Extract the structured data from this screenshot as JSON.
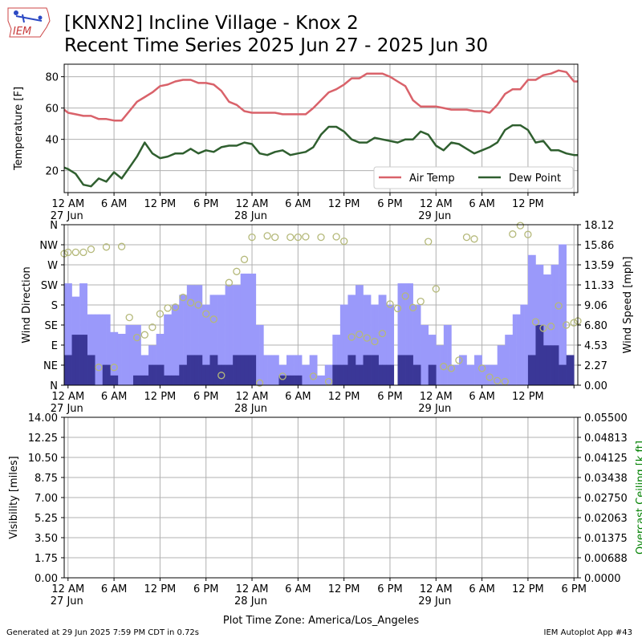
{
  "title_line1": "[KNXN2] Incline Village - Knox 2",
  "title_line2": "Recent Time Series 2025 Jun 27 - 2025 Jun 30",
  "logo_text": "IEM",
  "footer_left": "Generated at 29 Jun 2025 7:59 PM CDT in 0.72s",
  "footer_right": "IEM Autoplot App #43",
  "colors": {
    "air_temp": "#d9626a",
    "dew_point": "#2f5f2f",
    "gust_bar": "#9a99fa",
    "speed_bar": "#3a3797",
    "direction_marker": "#b5b97a",
    "ceiling_axis": "#008000",
    "grid": "#b0b0b0"
  },
  "chart_data": [
    {
      "type": "line",
      "ylabel": "Temperature [F]",
      "ylim": [
        6,
        88
      ],
      "yticks": [
        20,
        40,
        60,
        80
      ],
      "xlim": [
        -0.5,
        66.5
      ],
      "xticks": [
        0,
        6,
        12,
        18,
        24,
        30,
        36,
        42,
        48,
        54,
        60,
        66
      ],
      "xtick_labels": [
        "12 AM",
        "6 AM",
        "12 PM",
        "6 PM",
        "12 AM",
        "6 AM",
        "12 PM",
        "6 PM",
        "12 AM",
        "6 AM",
        "12 PM",
        ""
      ],
      "xtick_dates": {
        "0": "27 Jun",
        "24": "28 Jun",
        "48": "29 Jun"
      },
      "x_unit": "hours since 27 Jun 2025 12 AM",
      "legend": {
        "placement": "lower-right",
        "entries": [
          "Air Temp",
          "Dew Point"
        ]
      },
      "grid": true,
      "series": [
        {
          "name": "Air Temp",
          "x": [
            -0.5,
            0,
            1,
            2,
            3,
            4,
            5,
            6,
            7,
            8,
            9,
            10,
            11,
            12,
            13,
            14,
            15,
            16,
            17,
            18,
            19,
            20,
            21,
            22,
            23,
            24,
            25,
            26,
            27,
            28,
            29,
            30,
            31,
            32,
            33,
            34,
            35,
            36,
            37,
            38,
            39,
            40,
            41,
            42,
            43,
            44,
            45,
            46,
            47,
            48,
            49,
            50,
            51,
            52,
            53,
            54,
            55,
            56,
            57,
            58,
            59,
            60,
            61,
            62,
            63,
            64,
            65,
            66,
            66.5
          ],
          "values": [
            59,
            57,
            56,
            55,
            55,
            53,
            53,
            52,
            52,
            58,
            64,
            67,
            70,
            74,
            75,
            77,
            78,
            78,
            76,
            76,
            75,
            71,
            64,
            62,
            58,
            57,
            57,
            57,
            57,
            56,
            56,
            56,
            56,
            60,
            65,
            70,
            72,
            75,
            79,
            79,
            82,
            82,
            82,
            80,
            77,
            74,
            65,
            61,
            61,
            61,
            60,
            59,
            59,
            59,
            58,
            58,
            57,
            62,
            69,
            72,
            72,
            78,
            78,
            81,
            82,
            84,
            83,
            77,
            77
          ]
        },
        {
          "name": "Dew Point",
          "x": [
            -0.5,
            0,
            1,
            2,
            3,
            4,
            5,
            6,
            7,
            8,
            9,
            10,
            11,
            12,
            13,
            14,
            15,
            16,
            17,
            18,
            19,
            20,
            21,
            22,
            23,
            24,
            25,
            26,
            27,
            28,
            29,
            30,
            31,
            32,
            33,
            34,
            35,
            36,
            37,
            38,
            39,
            40,
            41,
            42,
            43,
            44,
            45,
            46,
            47,
            48,
            49,
            50,
            51,
            52,
            53,
            54,
            55,
            56,
            57,
            58,
            59,
            60,
            61,
            62,
            63,
            64,
            65,
            66,
            66.5
          ],
          "values": [
            22,
            21,
            18,
            11,
            10,
            15,
            13,
            19,
            15,
            22,
            29,
            38,
            31,
            28,
            29,
            31,
            31,
            34,
            31,
            33,
            32,
            35,
            36,
            36,
            38,
            37,
            31,
            30,
            32,
            33,
            30,
            31,
            32,
            35,
            43,
            48,
            48,
            45,
            40,
            38,
            38,
            41,
            40,
            39,
            38,
            40,
            40,
            45,
            43,
            36,
            33,
            38,
            37,
            34,
            31,
            33,
            35,
            38,
            46,
            49,
            49,
            46,
            38,
            39,
            33,
            33,
            31,
            30,
            30
          ]
        }
      ]
    },
    {
      "type": "bar",
      "ylabel": "Wind Direction",
      "y2label": "Wind Speed [mph]",
      "direction_labels": [
        "N",
        "NE",
        "E",
        "SE",
        "S",
        "SW",
        "W",
        "NW",
        "N"
      ],
      "ylim_direction": [
        0,
        360
      ],
      "ylim_speed": [
        0,
        18.12
      ],
      "speed_tick_labels": [
        "0.00",
        "2.27",
        "4.53",
        "6.80",
        "9.06",
        "11.33",
        "13.59",
        "15.86",
        "18.12"
      ],
      "xlim": [
        -0.5,
        66.5
      ],
      "xticks": [
        0,
        6,
        12,
        18,
        24,
        30,
        36,
        42,
        48,
        54,
        60,
        66
      ],
      "xtick_labels": [
        "12 AM",
        "6 AM",
        "12 PM",
        "6 PM",
        "12 AM",
        "6 AM",
        "12 PM",
        "6 PM",
        "12 AM",
        "6 AM",
        "12 PM",
        ""
      ],
      "xtick_dates": {
        "0": "27 Jun",
        "24": "28 Jun",
        "48": "29 Jun"
      },
      "x_unit": "hours since 27 Jun 2025 12 AM",
      "grid": true,
      "bars": {
        "start": -0.5,
        "step": 0.5,
        "gust_mph": [
          11.5,
          11.5,
          10,
          10,
          11.5,
          11.5,
          8,
          8,
          8,
          8,
          8,
          8,
          6,
          6,
          5.8,
          5.8,
          6.8,
          6.8,
          6.8,
          6.8,
          3.4,
          3.4,
          4.5,
          4.5,
          5.8,
          5.8,
          8,
          8,
          9.1,
          9.1,
          10.2,
          10.2,
          11.3,
          11.3,
          11.3,
          11.3,
          9.1,
          9.1,
          10.2,
          10.2,
          10.2,
          10.2,
          11.3,
          11.3,
          11.3,
          11.3,
          12.6,
          12.6,
          12.6,
          12.6,
          6.8,
          6.8,
          3.4,
          3.4,
          3.4,
          3.4,
          2.3,
          2.3,
          3.4,
          3.4,
          3.4,
          3.4,
          2.3,
          2.3,
          3.4,
          3.4,
          1.1,
          1.1,
          2.3,
          2.3,
          5.7,
          5.7,
          9.1,
          9.1,
          10.2,
          10.2,
          11.3,
          11.3,
          10.2,
          10.2,
          9.1,
          9.1,
          10.2,
          10.2,
          9.1,
          9.1,
          0,
          11.5,
          11.5,
          11.5,
          11.5,
          9.1,
          9.1,
          6.8,
          6.8,
          5.7,
          5.7,
          4.5,
          4.5,
          6.8,
          6.8,
          2.3,
          2.3,
          3.4,
          3.4,
          2.3,
          2.3,
          3.4,
          3.4,
          2.3,
          2.3,
          2.3,
          2.3,
          4.5,
          4.5,
          5.7,
          5.7,
          8,
          8,
          9.1,
          9.1,
          14.7,
          14.7,
          13.6,
          13.6,
          12.5,
          12.5,
          13.6,
          13.6,
          15.9,
          15.9
        ],
        "sustained_mph": [
          3.4,
          3.4,
          5.7,
          5.7,
          5.7,
          5.7,
          3.4,
          3.4,
          0,
          0,
          2.3,
          2.3,
          1.1,
          1.1,
          0,
          0,
          0,
          0,
          1.1,
          1.1,
          1.1,
          1.1,
          2.3,
          2.3,
          2.3,
          2.3,
          1.1,
          1.1,
          1.1,
          1.1,
          2.3,
          2.3,
          3.4,
          3.4,
          3.4,
          3.4,
          2.3,
          2.3,
          3.4,
          3.4,
          2.3,
          2.3,
          2.3,
          2.3,
          3.4,
          3.4,
          3.4,
          3.4,
          3.4,
          3.4,
          0,
          0,
          0,
          0,
          0,
          0,
          1.1,
          1.1,
          1.1,
          1.1,
          1.1,
          1.1,
          0,
          0,
          0,
          0,
          0,
          0,
          0,
          0,
          2.3,
          2.3,
          2.3,
          2.3,
          3.4,
          3.4,
          2.3,
          2.3,
          3.4,
          3.4,
          3.4,
          3.4,
          2.3,
          2.3,
          2.3,
          2.3,
          0,
          3.4,
          3.4,
          3.4,
          3.4,
          2.3,
          2.3,
          0,
          0,
          2.3,
          2.3,
          0,
          0,
          0,
          0,
          0,
          0,
          0,
          0,
          0,
          0,
          0,
          0,
          0,
          0,
          0,
          0,
          0,
          0,
          0,
          0,
          0,
          0,
          0,
          0,
          3.4,
          3.4,
          6.8,
          6.8,
          4.5,
          4.5,
          4.5,
          4.5,
          2.3,
          2.3,
          3.4,
          3.4
        ]
      },
      "direction_points": {
        "x": [
          -0.5,
          0,
          1,
          2,
          3,
          4,
          5,
          6,
          7,
          8,
          9,
          10,
          11,
          12,
          13,
          14,
          15,
          16,
          17,
          18,
          19,
          20,
          21,
          22,
          23,
          24,
          25,
          26,
          27,
          28,
          29,
          30,
          31,
          32,
          33,
          34,
          35,
          36,
          37,
          38,
          39,
          40,
          41,
          42,
          43,
          44,
          45,
          46,
          47,
          48,
          49,
          50,
          51,
          52,
          53,
          54,
          55,
          56,
          57,
          58,
          59,
          60,
          61,
          62,
          63,
          64,
          65,
          66,
          66.5
        ],
        "deg": [
          295,
          298,
          298,
          298,
          305,
          40,
          310,
          40,
          311,
          152,
          107,
          113,
          130,
          160,
          173,
          175,
          197,
          185,
          180,
          160,
          148,
          22,
          230,
          255,
          282,
          332,
          5,
          335,
          332,
          20,
          332,
          332,
          333,
          20,
          332,
          8,
          333,
          323,
          108,
          114,
          106,
          98,
          116,
          182,
          172,
          200,
          174,
          188,
          322,
          216,
          42,
          38,
          56,
          332,
          328,
          38,
          18,
          10,
          8,
          339,
          358,
          338,
          142,
          128,
          132,
          178,
          135,
          140,
          144
        ],
        "note_dir_degrees_converted": true
      }
    },
    {
      "type": "line",
      "ylabel": "Visibility [miles]",
      "y2label": "Overcast Ceiling [k ft]",
      "ylim": [
        0,
        14
      ],
      "yticks": [
        "0.00",
        "1.75",
        "3.50",
        "5.25",
        "7.00",
        "8.75",
        "10.50",
        "12.25",
        "14.00"
      ],
      "y2lim": [
        0,
        0.055
      ],
      "y2ticks": [
        "0.0000",
        "0.00688",
        "0.01375",
        "0.02063",
        "0.02750",
        "0.03438",
        "0.04125",
        "0.04813",
        "0.05500"
      ],
      "xlim": [
        -0.5,
        66.5
      ],
      "xticks": [
        0,
        6,
        12,
        18,
        24,
        30,
        36,
        42,
        48,
        54,
        60,
        66
      ],
      "xtick_labels": [
        "12 AM",
        "6 AM",
        "12 PM",
        "6 PM",
        "12 AM",
        "6 AM",
        "12 PM",
        "6 PM",
        "12 AM",
        "6 AM",
        "12 PM",
        "6 PM"
      ],
      "xtick_dates": {
        "0": "27 Jun",
        "24": "28 Jun",
        "48": "29 Jun"
      },
      "xlabel": "Plot Time Zone: America/Los_Angeles",
      "x_unit": "hours since 27 Jun 2025 12 AM",
      "grid": true,
      "series": []
    }
  ]
}
